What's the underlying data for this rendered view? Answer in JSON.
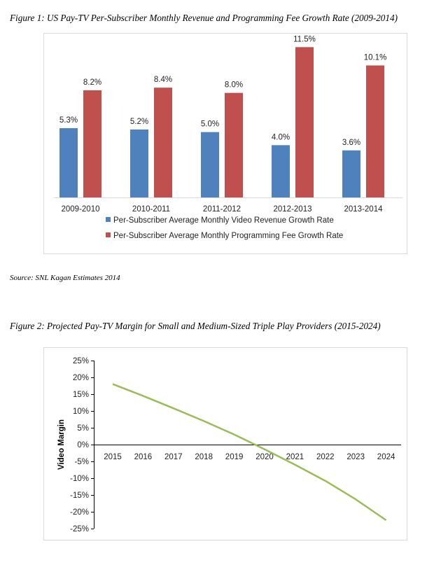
{
  "captions": {
    "figure1": "Figure 1: US Pay-TV Per-Subscriber Monthly Revenue and Programming Fee Growth Rate (2009-2014)",
    "source": "Source: SNL Kagan Estimates 2014",
    "figure2": "Figure 2: Projected Pay-TV Margin for Small and Medium-Sized Triple Play Providers (2015-2024)"
  },
  "colors": {
    "blue": "#4f81bd",
    "red": "#c0504d",
    "green": "#9bbb59",
    "axis": "#000000",
    "text": "#000000"
  },
  "chart_data": [
    {
      "type": "bar",
      "title": "",
      "xlabel": "",
      "ylabel": "",
      "categories": [
        "2009-2010",
        "2010-2011",
        "2011-2012",
        "2012-2013",
        "2013-2014"
      ],
      "series": [
        {
          "name": "Per-Subscriber Average Monthly Video Revenue Growth Rate",
          "values": [
            5.3,
            5.2,
            5.0,
            4.0,
            3.6
          ],
          "labels": [
            "5.3%",
            "5.2%",
            "5.0%",
            "4.0%",
            "3.6%"
          ]
        },
        {
          "name": "Per-Subscriber Average Monthly Programming Fee Growth Rate",
          "values": [
            8.2,
            8.4,
            8.0,
            11.5,
            10.1
          ],
          "labels": [
            "8.2%",
            "8.4%",
            "8.0%",
            "11.5%",
            "10.1%"
          ]
        }
      ],
      "ylim": [
        0,
        12
      ],
      "grid": false,
      "legend": "bottom"
    },
    {
      "type": "line",
      "title": "",
      "xlabel": "",
      "ylabel": "Video Margin",
      "x": [
        "2015",
        "2016",
        "2017",
        "2018",
        "2019",
        "2020",
        "2021",
        "2022",
        "2023",
        "2024"
      ],
      "series": [
        {
          "values": [
            18.0,
            14.5,
            10.8,
            7.0,
            3.0,
            -1.4,
            -6.0,
            -10.8,
            -16.3,
            -22.5
          ]
        }
      ],
      "yticks": [
        "25%",
        "20%",
        "15%",
        "10%",
        "5%",
        "0%",
        "-5%",
        "-10%",
        "-15%",
        "-20%",
        "-25%"
      ],
      "ylim": [
        -25,
        25
      ],
      "grid": false,
      "legend": "none"
    }
  ]
}
